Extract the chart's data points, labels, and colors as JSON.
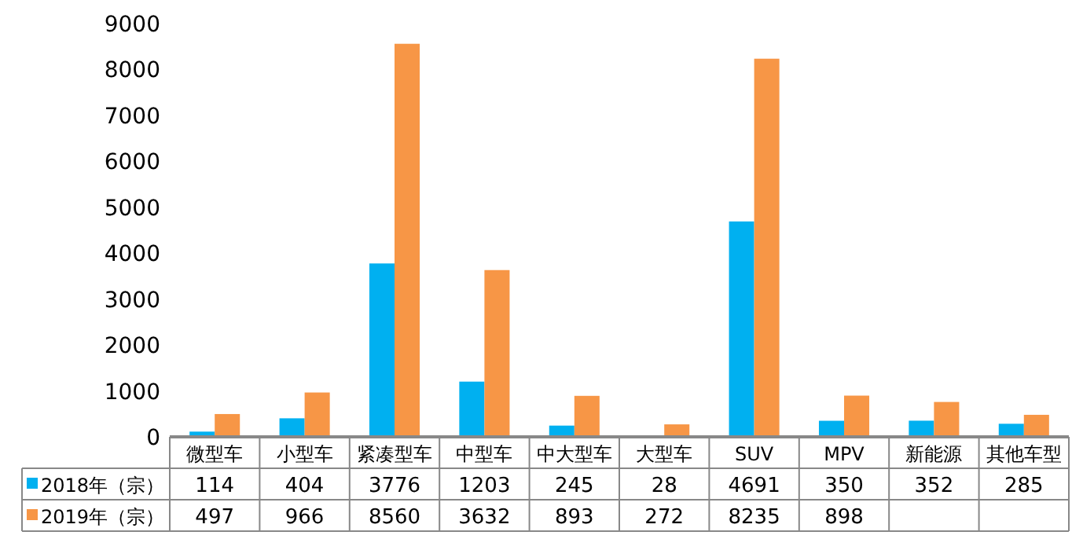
{
  "chart_data": {
    "type": "bar",
    "categories": [
      "微型车",
      "小型车",
      "紧凑型车",
      "中型车",
      "中大型车",
      "大型车",
      "SUV",
      "MPV",
      "新能源",
      "其他车型"
    ],
    "series": [
      {
        "name": "2018年（宗）",
        "color": "#00b0f0",
        "values": [
          114,
          404,
          3776,
          1203,
          245,
          28,
          4691,
          350,
          352,
          285
        ],
        "value_labels": [
          "114",
          "404",
          "3776",
          "1203",
          "245",
          "28",
          "4691",
          "350",
          "352",
          "285"
        ]
      },
      {
        "name": "2019年（宗）",
        "color": "#f79646",
        "values": [
          497,
          966,
          8560,
          3632,
          893,
          272,
          8235,
          898,
          760,
          480
        ],
        "value_labels": [
          "497",
          "966",
          "8560",
          "3632",
          "893",
          "272",
          "8235",
          "898",
          null,
          null
        ]
      }
    ],
    "ylim": [
      0,
      9000
    ],
    "yticks": [
      0,
      1000,
      2000,
      3000,
      4000,
      5000,
      6000,
      7000,
      8000,
      9000
    ],
    "grid": false,
    "legend": "bottom"
  }
}
